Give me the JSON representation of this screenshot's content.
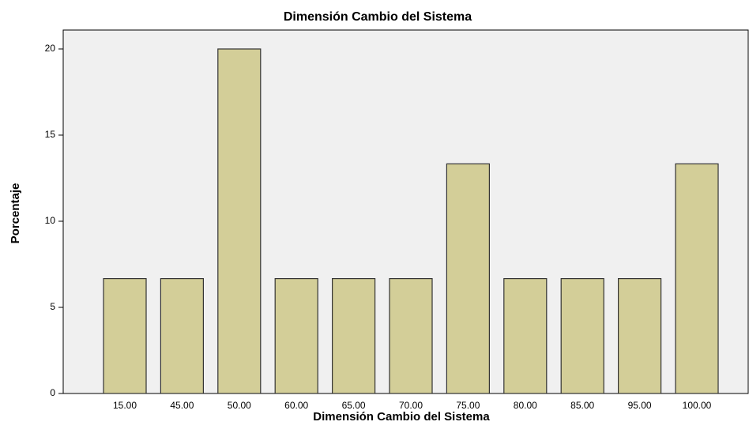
{
  "chart_data": {
    "type": "bar",
    "title": "Dimensión Cambio del Sistema",
    "xlabel": "Dimensión Cambio del Sistema",
    "ylabel": "Porcentaje",
    "categories": [
      "15.00",
      "45.00",
      "50.00",
      "60.00",
      "65.00",
      "70.00",
      "75.00",
      "80.00",
      "85.00",
      "95.00",
      "100.00"
    ],
    "values": [
      6.67,
      6.67,
      20,
      6.67,
      6.67,
      6.67,
      13.33,
      6.67,
      6.67,
      6.67,
      13.33
    ],
    "color": "#d3ce98",
    "ylim": [
      0,
      21.1
    ],
    "yticks": [
      0,
      5,
      10,
      15,
      20
    ],
    "grid": false
  }
}
